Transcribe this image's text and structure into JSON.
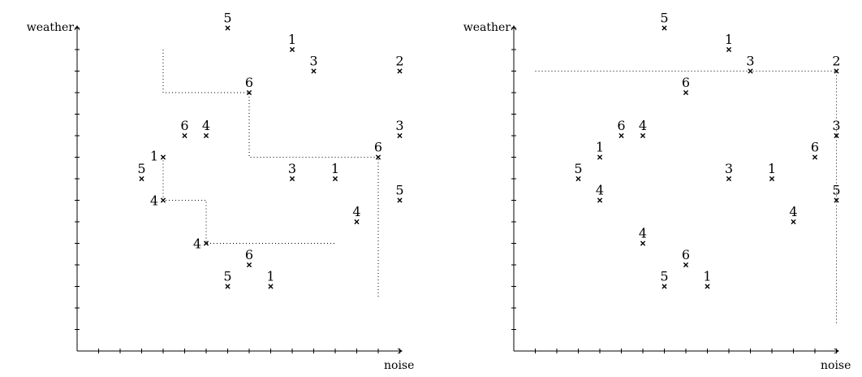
{
  "chart_data": [
    {
      "type": "scatter",
      "xlabel": "noise",
      "ylabel": "weather",
      "points": [
        {
          "x": 7,
          "y": 15,
          "label": "5"
        },
        {
          "x": 10,
          "y": 14,
          "label": "1"
        },
        {
          "x": 11,
          "y": 13,
          "label": "3"
        },
        {
          "x": 15,
          "y": 13,
          "label": "2"
        },
        {
          "x": 8,
          "y": 12,
          "label": "6"
        },
        {
          "x": 5,
          "y": 10,
          "label": "6"
        },
        {
          "x": 6,
          "y": 10,
          "label": "4"
        },
        {
          "x": 15,
          "y": 10,
          "label": "3"
        },
        {
          "x": 4,
          "y": 9,
          "label": "1"
        },
        {
          "x": 14,
          "y": 9,
          "label": "6"
        },
        {
          "x": 3,
          "y": 8,
          "label": "5"
        },
        {
          "x": 10,
          "y": 8,
          "label": "3"
        },
        {
          "x": 12,
          "y": 8,
          "label": "1"
        },
        {
          "x": 4,
          "y": 7,
          "label": "4"
        },
        {
          "x": 15,
          "y": 7,
          "label": "5"
        },
        {
          "x": 13,
          "y": 6,
          "label": "4"
        },
        {
          "x": 6,
          "y": 5,
          "label": "4"
        },
        {
          "x": 8,
          "y": 4,
          "label": "6"
        },
        {
          "x": 7,
          "y": 3,
          "label": "5"
        },
        {
          "x": 9,
          "y": 3,
          "label": "1"
        }
      ],
      "path": [
        [
          4,
          14
        ],
        [
          4,
          12
        ],
        [
          8,
          12
        ],
        [
          8,
          9
        ],
        [
          14,
          9
        ],
        [
          14,
          2.5
        ]
      ],
      "path2": [
        [
          4,
          9
        ],
        [
          4,
          7
        ],
        [
          6,
          7
        ],
        [
          6,
          5
        ],
        [
          12,
          5
        ]
      ]
    },
    {
      "type": "scatter",
      "xlabel": "noise",
      "ylabel": "weather",
      "points": [
        {
          "x": 7,
          "y": 15,
          "label": "5"
        },
        {
          "x": 10,
          "y": 14,
          "label": "1"
        },
        {
          "x": 11,
          "y": 13,
          "label": "3"
        },
        {
          "x": 15,
          "y": 13,
          "label": "2"
        },
        {
          "x": 8,
          "y": 12,
          "label": "6"
        },
        {
          "x": 5,
          "y": 10,
          "label": "6"
        },
        {
          "x": 6,
          "y": 10,
          "label": "4"
        },
        {
          "x": 15,
          "y": 10,
          "label": "3"
        },
        {
          "x": 4,
          "y": 9,
          "label": "1"
        },
        {
          "x": 14,
          "y": 9,
          "label": "6"
        },
        {
          "x": 3,
          "y": 8,
          "label": "5"
        },
        {
          "x": 10,
          "y": 8,
          "label": "3"
        },
        {
          "x": 12,
          "y": 8,
          "label": "1"
        },
        {
          "x": 4,
          "y": 7,
          "label": "4"
        },
        {
          "x": 15,
          "y": 7,
          "label": "5"
        },
        {
          "x": 13,
          "y": 6,
          "label": "4"
        },
        {
          "x": 6,
          "y": 5,
          "label": "4"
        },
        {
          "x": 8,
          "y": 4,
          "label": "6"
        },
        {
          "x": 7,
          "y": 3,
          "label": "5"
        },
        {
          "x": 9,
          "y": 3,
          "label": "1"
        }
      ],
      "path": [
        [
          1,
          13
        ],
        [
          15,
          13
        ],
        [
          15,
          1.2
        ]
      ]
    }
  ]
}
